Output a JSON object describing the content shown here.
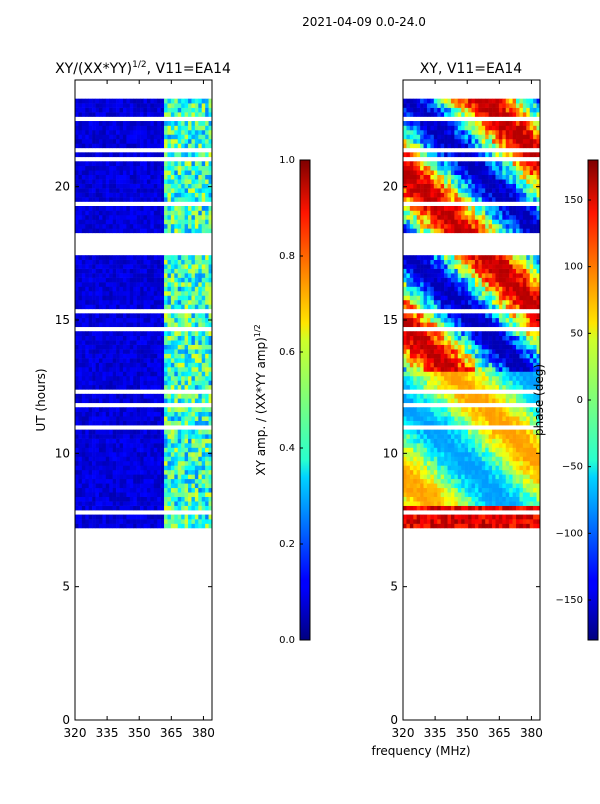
{
  "suptitle": "2021-04-09 0.0-24.0",
  "chart_data": [
    {
      "type": "heatmap",
      "title_text": "XY/(XX*YY)",
      "title_sup": "1/2",
      "title_suffix": ", V11=EA14",
      "ylabel": "UT (hours)",
      "xlabel": "",
      "xlim": [
        320,
        384
      ],
      "ylim": [
        0,
        24
      ],
      "xticks": [
        "320",
        "335",
        "350",
        "365",
        "380"
      ],
      "yticks": [
        "0",
        "5",
        "10",
        "15",
        "20"
      ],
      "data_range_hours": [
        7.2,
        23.3
      ],
      "colorbar": {
        "label_text": "XY amp. / (XX*YY amp)",
        "label_sup": "1/2",
        "range": [
          0.0,
          1.0
        ],
        "ticks": [
          "0.0",
          "0.2",
          "0.4",
          "0.6",
          "0.8",
          "1.0"
        ]
      }
    },
    {
      "type": "heatmap",
      "title_text": "XY, V11=EA14",
      "xlabel": "frequency (MHz)",
      "ylabel": "",
      "xlim": [
        320,
        384
      ],
      "ylim": [
        0,
        24
      ],
      "xticks": [
        "320",
        "335",
        "350",
        "365",
        "380"
      ],
      "yticks": [
        "0",
        "5",
        "10",
        "15",
        "20"
      ],
      "data_range_hours": [
        7.2,
        23.3
      ],
      "colorbar": {
        "label_text": "phase (deg)",
        "range": [
          -180,
          180
        ],
        "ticks": [
          "−150",
          "−100",
          "−50",
          "0",
          "50",
          "100",
          "150"
        ]
      }
    }
  ]
}
